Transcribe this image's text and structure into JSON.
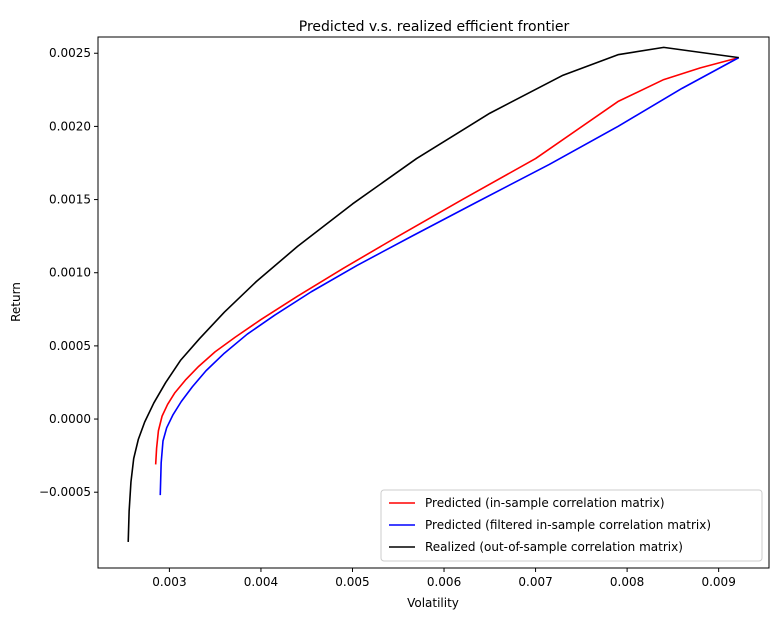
{
  "chart_data": {
    "type": "line",
    "title": "Predicted v.s. realized efficient frontier",
    "xlabel": "Volatility",
    "ylabel": "Return",
    "xlim": [
      0.00222,
      0.00955
    ],
    "ylim": [
      -0.001018,
      0.002611
    ],
    "xticks": [
      0.003,
      0.004,
      0.005,
      0.006,
      0.007,
      0.008,
      0.009
    ],
    "xtick_labels": [
      "0.003",
      "0.004",
      "0.005",
      "0.006",
      "0.007",
      "0.008",
      "0.009"
    ],
    "yticks": [
      -0.0005,
      0.0,
      0.0005,
      0.001,
      0.0015,
      0.002,
      0.0025
    ],
    "ytick_labels": [
      "−0.0005",
      "0.0000",
      "0.0005",
      "0.0010",
      "0.0015",
      "0.0020",
      "0.0025"
    ],
    "grid": false,
    "legend_position": "lower-right",
    "series": [
      {
        "name": "Predicted (in-sample correlation matrix)",
        "color": "#ff0000",
        "x": [
          0.00285,
          0.00286,
          0.00288,
          0.00292,
          0.00298,
          0.00306,
          0.00318,
          0.00332,
          0.0035,
          0.00372,
          0.004,
          0.0044,
          0.0049,
          0.0055,
          0.0062,
          0.007,
          0.0079,
          0.0084,
          0.0088,
          0.00922
        ],
        "y": [
          -0.00031,
          -0.0002,
          -8e-05,
          2e-05,
          0.0001,
          0.00018,
          0.00027,
          0.00036,
          0.00046,
          0.00056,
          0.00068,
          0.00084,
          0.00103,
          0.00125,
          0.0015,
          0.00178,
          0.00217,
          0.00232,
          0.0024,
          0.00247
        ]
      },
      {
        "name": "Predicted (filtered in-sample correlation matrix)",
        "color": "#0000ff",
        "x": [
          0.0029,
          0.00291,
          0.00293,
          0.00297,
          0.00304,
          0.00313,
          0.00325,
          0.0034,
          0.0036,
          0.00385,
          0.00415,
          0.00455,
          0.00505,
          0.00565,
          0.00635,
          0.00715,
          0.0079,
          0.0086,
          0.00922
        ],
        "y": [
          -0.00052,
          -0.0003,
          -0.00015,
          -6e-05,
          3e-05,
          0.00012,
          0.00022,
          0.00033,
          0.00045,
          0.00058,
          0.00071,
          0.00087,
          0.00105,
          0.00125,
          0.00148,
          0.00174,
          0.002,
          0.00226,
          0.00247
        ]
      },
      {
        "name": "Realized (out-of-sample correlation matrix)",
        "color": "#000000",
        "x": [
          0.00255,
          0.00256,
          0.00258,
          0.00261,
          0.00266,
          0.00273,
          0.00283,
          0.00296,
          0.00312,
          0.00333,
          0.0036,
          0.00395,
          0.0044,
          0.005,
          0.0057,
          0.0065,
          0.0073,
          0.0079,
          0.0084,
          0.00922
        ],
        "y": [
          -0.00084,
          -0.00063,
          -0.00043,
          -0.00027,
          -0.00014,
          -2e-05,
          0.00011,
          0.00025,
          0.0004,
          0.00055,
          0.00073,
          0.00094,
          0.00118,
          0.00147,
          0.00178,
          0.00209,
          0.00235,
          0.00249,
          0.00254,
          0.00247
        ]
      }
    ]
  }
}
